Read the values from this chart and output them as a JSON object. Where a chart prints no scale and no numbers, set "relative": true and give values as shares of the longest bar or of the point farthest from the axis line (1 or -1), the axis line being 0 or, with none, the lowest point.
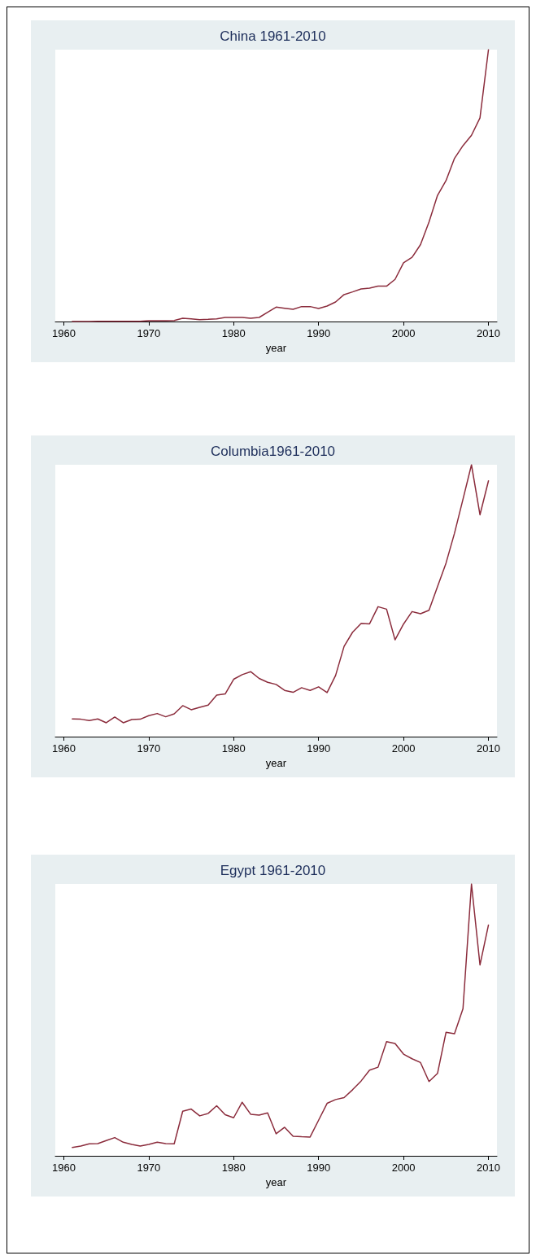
{
  "chart_data": [
    {
      "type": "line",
      "title": "China 1961-2010",
      "xlabel": "year",
      "relative": true,
      "xlim": [
        1959,
        2011
      ],
      "xticks": [
        1960,
        1970,
        1980,
        1990,
        2000,
        2010
      ],
      "x": [
        1961,
        1962,
        1963,
        1964,
        1965,
        1966,
        1967,
        1968,
        1969,
        1970,
        1971,
        1972,
        1973,
        1974,
        1975,
        1976,
        1977,
        1978,
        1979,
        1980,
        1981,
        1982,
        1983,
        1984,
        1985,
        1986,
        1987,
        1988,
        1989,
        1990,
        1991,
        1992,
        1993,
        1994,
        1995,
        1996,
        1997,
        1998,
        1999,
        2000,
        2001,
        2002,
        2003,
        2004,
        2005,
        2006,
        2007,
        2008,
        2009,
        2010
      ],
      "series": [
        {
          "color": "#8b2c3c",
          "values": [
            0,
            0,
            0,
            0.001,
            0.001,
            0.001,
            0.001,
            0.001,
            0.001,
            0.003,
            0.003,
            0.003,
            0.004,
            0.012,
            0.01,
            0.007,
            0.008,
            0.01,
            0.015,
            0.015,
            0.015,
            0.012,
            0.015,
            0.034,
            0.053,
            0.049,
            0.045,
            0.055,
            0.055,
            0.048,
            0.057,
            0.072,
            0.099,
            0.109,
            0.12,
            0.123,
            0.13,
            0.13,
            0.155,
            0.216,
            0.236,
            0.283,
            0.366,
            0.464,
            0.518,
            0.6,
            0.647,
            0.685,
            0.749,
            1
          ]
        }
      ]
    },
    {
      "type": "line",
      "title": "Columbia1961-2010",
      "xlabel": "year",
      "relative": true,
      "xlim": [
        1959,
        2011
      ],
      "xticks": [
        1960,
        1970,
        1980,
        1990,
        2000,
        2010
      ],
      "x": [
        1961,
        1962,
        1963,
        1964,
        1965,
        1966,
        1967,
        1968,
        1969,
        1970,
        1971,
        1972,
        1973,
        1974,
        1975,
        1976,
        1977,
        1978,
        1979,
        1980,
        1981,
        1982,
        1983,
        1984,
        1985,
        1986,
        1987,
        1988,
        1989,
        1990,
        1991,
        1992,
        1993,
        1994,
        1995,
        1996,
        1997,
        1998,
        1999,
        2000,
        2001,
        2002,
        2003,
        2004,
        2005,
        2006,
        2007,
        2008,
        2009,
        2010
      ],
      "series": [
        {
          "color": "#8b2c3c",
          "values": [
            0.065,
            0.064,
            0.059,
            0.065,
            0.051,
            0.072,
            0.051,
            0.063,
            0.064,
            0.077,
            0.085,
            0.073,
            0.084,
            0.114,
            0.099,
            0.108,
            0.116,
            0.153,
            0.157,
            0.211,
            0.228,
            0.239,
            0.214,
            0.2,
            0.192,
            0.17,
            0.163,
            0.18,
            0.17,
            0.183,
            0.162,
            0.225,
            0.332,
            0.384,
            0.416,
            0.415,
            0.478,
            0.469,
            0.356,
            0.414,
            0.46,
            0.452,
            0.465,
            0.552,
            0.638,
            0.748,
            0.873,
            1,
            0.816,
            0.941
          ]
        }
      ]
    },
    {
      "type": "line",
      "title": "Egypt 1961-2010",
      "xlabel": "year",
      "relative": true,
      "xlim": [
        1959,
        2011
      ],
      "xticks": [
        1960,
        1970,
        1980,
        1990,
        2000,
        2010
      ],
      "x": [
        1961,
        1962,
        1963,
        1964,
        1965,
        1966,
        1967,
        1968,
        1969,
        1970,
        1971,
        1972,
        1973,
        1974,
        1975,
        1976,
        1977,
        1978,
        1979,
        1980,
        1981,
        1982,
        1983,
        1984,
        1985,
        1986,
        1987,
        1988,
        1989,
        1990,
        1991,
        1992,
        1993,
        1994,
        1995,
        1996,
        1997,
        1998,
        1999,
        2000,
        2001,
        2002,
        2003,
        2004,
        2005,
        2006,
        2007,
        2008,
        2009,
        2010
      ],
      "series": [
        {
          "color": "#8b2c3c",
          "values": [
            0.031,
            0.036,
            0.044,
            0.045,
            0.056,
            0.067,
            0.05,
            0.042,
            0.036,
            0.042,
            0.05,
            0.045,
            0.044,
            0.164,
            0.172,
            0.147,
            0.156,
            0.184,
            0.151,
            0.14,
            0.197,
            0.153,
            0.15,
            0.158,
            0.081,
            0.105,
            0.072,
            0.07,
            0.069,
            0.131,
            0.193,
            0.207,
            0.214,
            0.243,
            0.275,
            0.315,
            0.326,
            0.42,
            0.413,
            0.374,
            0.357,
            0.343,
            0.273,
            0.303,
            0.454,
            0.449,
            0.541,
            1,
            0.702,
            0.849
          ]
        }
      ]
    }
  ]
}
